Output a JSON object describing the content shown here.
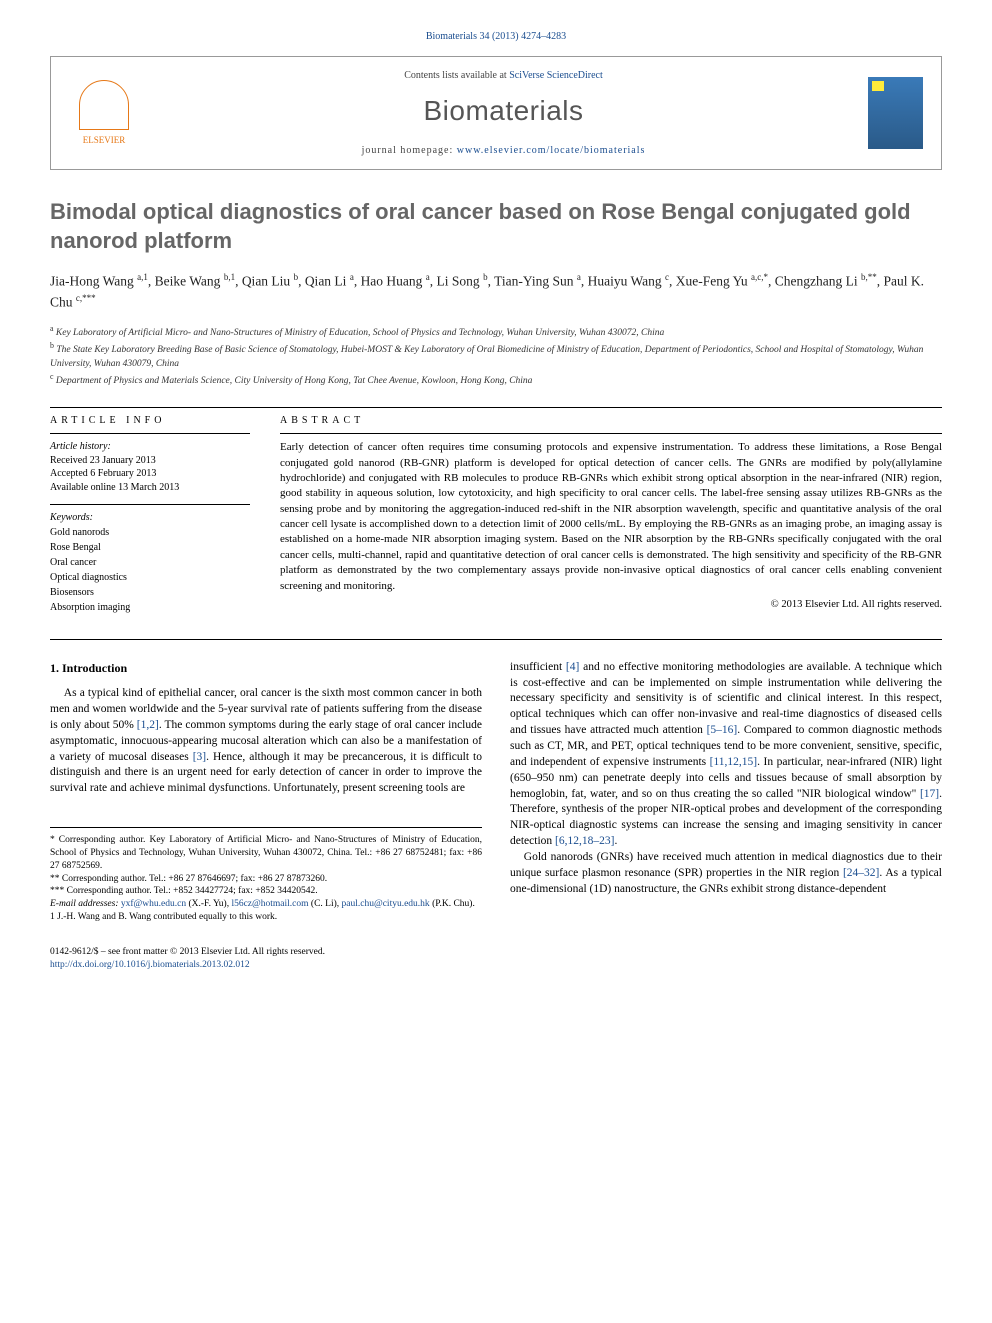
{
  "header": {
    "citation_prefix": "Biomaterials 34 (2013) 4274–4283",
    "contents_line_prefix": "Contents lists available at ",
    "contents_link": "SciVerse ScienceDirect",
    "journal_name": "Biomaterials",
    "homepage_prefix": "journal homepage: ",
    "homepage_url": "www.elsevier.com/locate/biomaterials",
    "elsevier_label": "ELSEVIER"
  },
  "article": {
    "title": "Bimodal optical diagnostics of oral cancer based on Rose Bengal conjugated gold nanorod platform",
    "authors_html": "Jia-Hong Wang <sup>a,1</sup>, Beike Wang <sup>b,1</sup>, Qian Liu <sup>b</sup>, Qian Li <sup>a</sup>, Hao Huang <sup>a</sup>, Li Song <sup>b</sup>, Tian-Ying Sun <sup>a</sup>, Huaiyu Wang <sup>c</sup>, Xue-Feng Yu <sup>a,c,*</sup>, Chengzhang Li <sup>b,**</sup>, Paul K. Chu <sup>c,***</sup>",
    "affiliations": [
      "a Key Laboratory of Artificial Micro- and Nano-Structures of Ministry of Education, School of Physics and Technology, Wuhan University, Wuhan 430072, China",
      "b The State Key Laboratory Breeding Base of Basic Science of Stomatology, Hubei-MOST & Key Laboratory of Oral Biomedicine of Ministry of Education, Department of Periodontics, School and Hospital of Stomatology, Wuhan University, Wuhan 430079, China",
      "c Department of Physics and Materials Science, City University of Hong Kong, Tat Chee Avenue, Kowloon, Hong Kong, China"
    ]
  },
  "info": {
    "section_label": "ARTICLE INFO",
    "history_label": "Article history:",
    "history": [
      "Received 23 January 2013",
      "Accepted 6 February 2013",
      "Available online 13 March 2013"
    ],
    "keywords_label": "Keywords:",
    "keywords": [
      "Gold nanorods",
      "Rose Bengal",
      "Oral cancer",
      "Optical diagnostics",
      "Biosensors",
      "Absorption imaging"
    ]
  },
  "abstract": {
    "section_label": "ABSTRACT",
    "text": "Early detection of cancer often requires time consuming protocols and expensive instrumentation. To address these limitations, a Rose Bengal conjugated gold nanorod (RB-GNR) platform is developed for optical detection of cancer cells. The GNRs are modified by poly(allylamine hydrochloride) and conjugated with RB molecules to produce RB-GNRs which exhibit strong optical absorption in the near-infrared (NIR) region, good stability in aqueous solution, low cytotoxicity, and high specificity to oral cancer cells. The label-free sensing assay utilizes RB-GNRs as the sensing probe and by monitoring the aggregation-induced red-shift in the NIR absorption wavelength, specific and quantitative analysis of the oral cancer cell lysate is accomplished down to a detection limit of 2000 cells/mL. By employing the RB-GNRs as an imaging probe, an imaging assay is established on a home-made NIR absorption imaging system. Based on the NIR absorption by the RB-GNRs specifically conjugated with the oral cancer cells, multi-channel, rapid and quantitative detection of oral cancer cells is demonstrated. The high sensitivity and specificity of the RB-GNR platform as demonstrated by the two complementary assays provide non-invasive optical diagnostics of oral cancer cells enabling convenient screening and monitoring.",
    "copyright": "© 2013 Elsevier Ltd. All rights reserved."
  },
  "body": {
    "intro_heading": "1. Introduction",
    "left_para": "As a typical kind of epithelial cancer, oral cancer is the sixth most common cancer in both men and women worldwide and the 5-year survival rate of patients suffering from the disease is only about 50% [1,2]. The common symptoms during the early stage of oral cancer include asymptomatic, innocuous-appearing mucosal alteration which can also be a manifestation of a variety of mucosal diseases [3]. Hence, although it may be precancerous, it is difficult to distinguish and there is an urgent need for early detection of cancer in order to improve the survival rate and achieve minimal dysfunctions. Unfortunately, present screening tools are",
    "right_para_1": "insufficient [4] and no effective monitoring methodologies are available. A technique which is cost-effective and can be implemented on simple instrumentation while delivering the necessary specificity and sensitivity is of scientific and clinical interest. In this respect, optical techniques which can offer non-invasive and real-time diagnostics of diseased cells and tissues have attracted much attention [5–16]. Compared to common diagnostic methods such as CT, MR, and PET, optical techniques tend to be more convenient, sensitive, specific, and independent of expensive instruments [11,12,15]. In particular, near-infrared (NIR) light (650–950 nm) can penetrate deeply into cells and tissues because of small absorption by hemoglobin, fat, water, and so on thus creating the so called \"NIR biological window\" [17]. Therefore, synthesis of the proper NIR-optical probes and development of the corresponding NIR-optical diagnostic systems can increase the sensing and imaging sensitivity in cancer detection [6,12,18–23].",
    "right_para_2": "Gold nanorods (GNRs) have received much attention in medical diagnostics due to their unique surface plasmon resonance (SPR) properties in the NIR region [24–32]. As a typical one-dimensional (1D) nanostructure, the GNRs exhibit strong distance-dependent"
  },
  "correspondence": {
    "star1": "* Corresponding author. Key Laboratory of Artificial Micro- and Nano-Structures of Ministry of Education, School of Physics and Technology, Wuhan University, Wuhan 430072, China. Tel.: +86 27 68752481; fax: +86 27 68752569.",
    "star2": "** Corresponding author. Tel.: +86 27 87646697; fax: +86 27 87873260.",
    "star3": "*** Corresponding author. Tel.: +852 34427724; fax: +852 34420542.",
    "emails_label": "E-mail addresses: ",
    "email1": "yxf@whu.edu.cn",
    "email1_person": " (X.-F. Yu), ",
    "email2": "l56cz@hotmail.com",
    "email2_person": " (C. Li), ",
    "email3": "paul.chu@cityu.edu.hk",
    "email3_person": " (P.K. Chu).",
    "footnote1": "1  J.-H. Wang and B. Wang contributed equally to this work."
  },
  "footer": {
    "line1": "0142-9612/$ – see front matter © 2013 Elsevier Ltd. All rights reserved.",
    "doi": "http://dx.doi.org/10.1016/j.biomaterials.2013.02.012"
  },
  "colors": {
    "link": "#1a4d8f",
    "elsevier_orange": "#e67817",
    "title_gray": "#666666",
    "text": "#000000"
  }
}
